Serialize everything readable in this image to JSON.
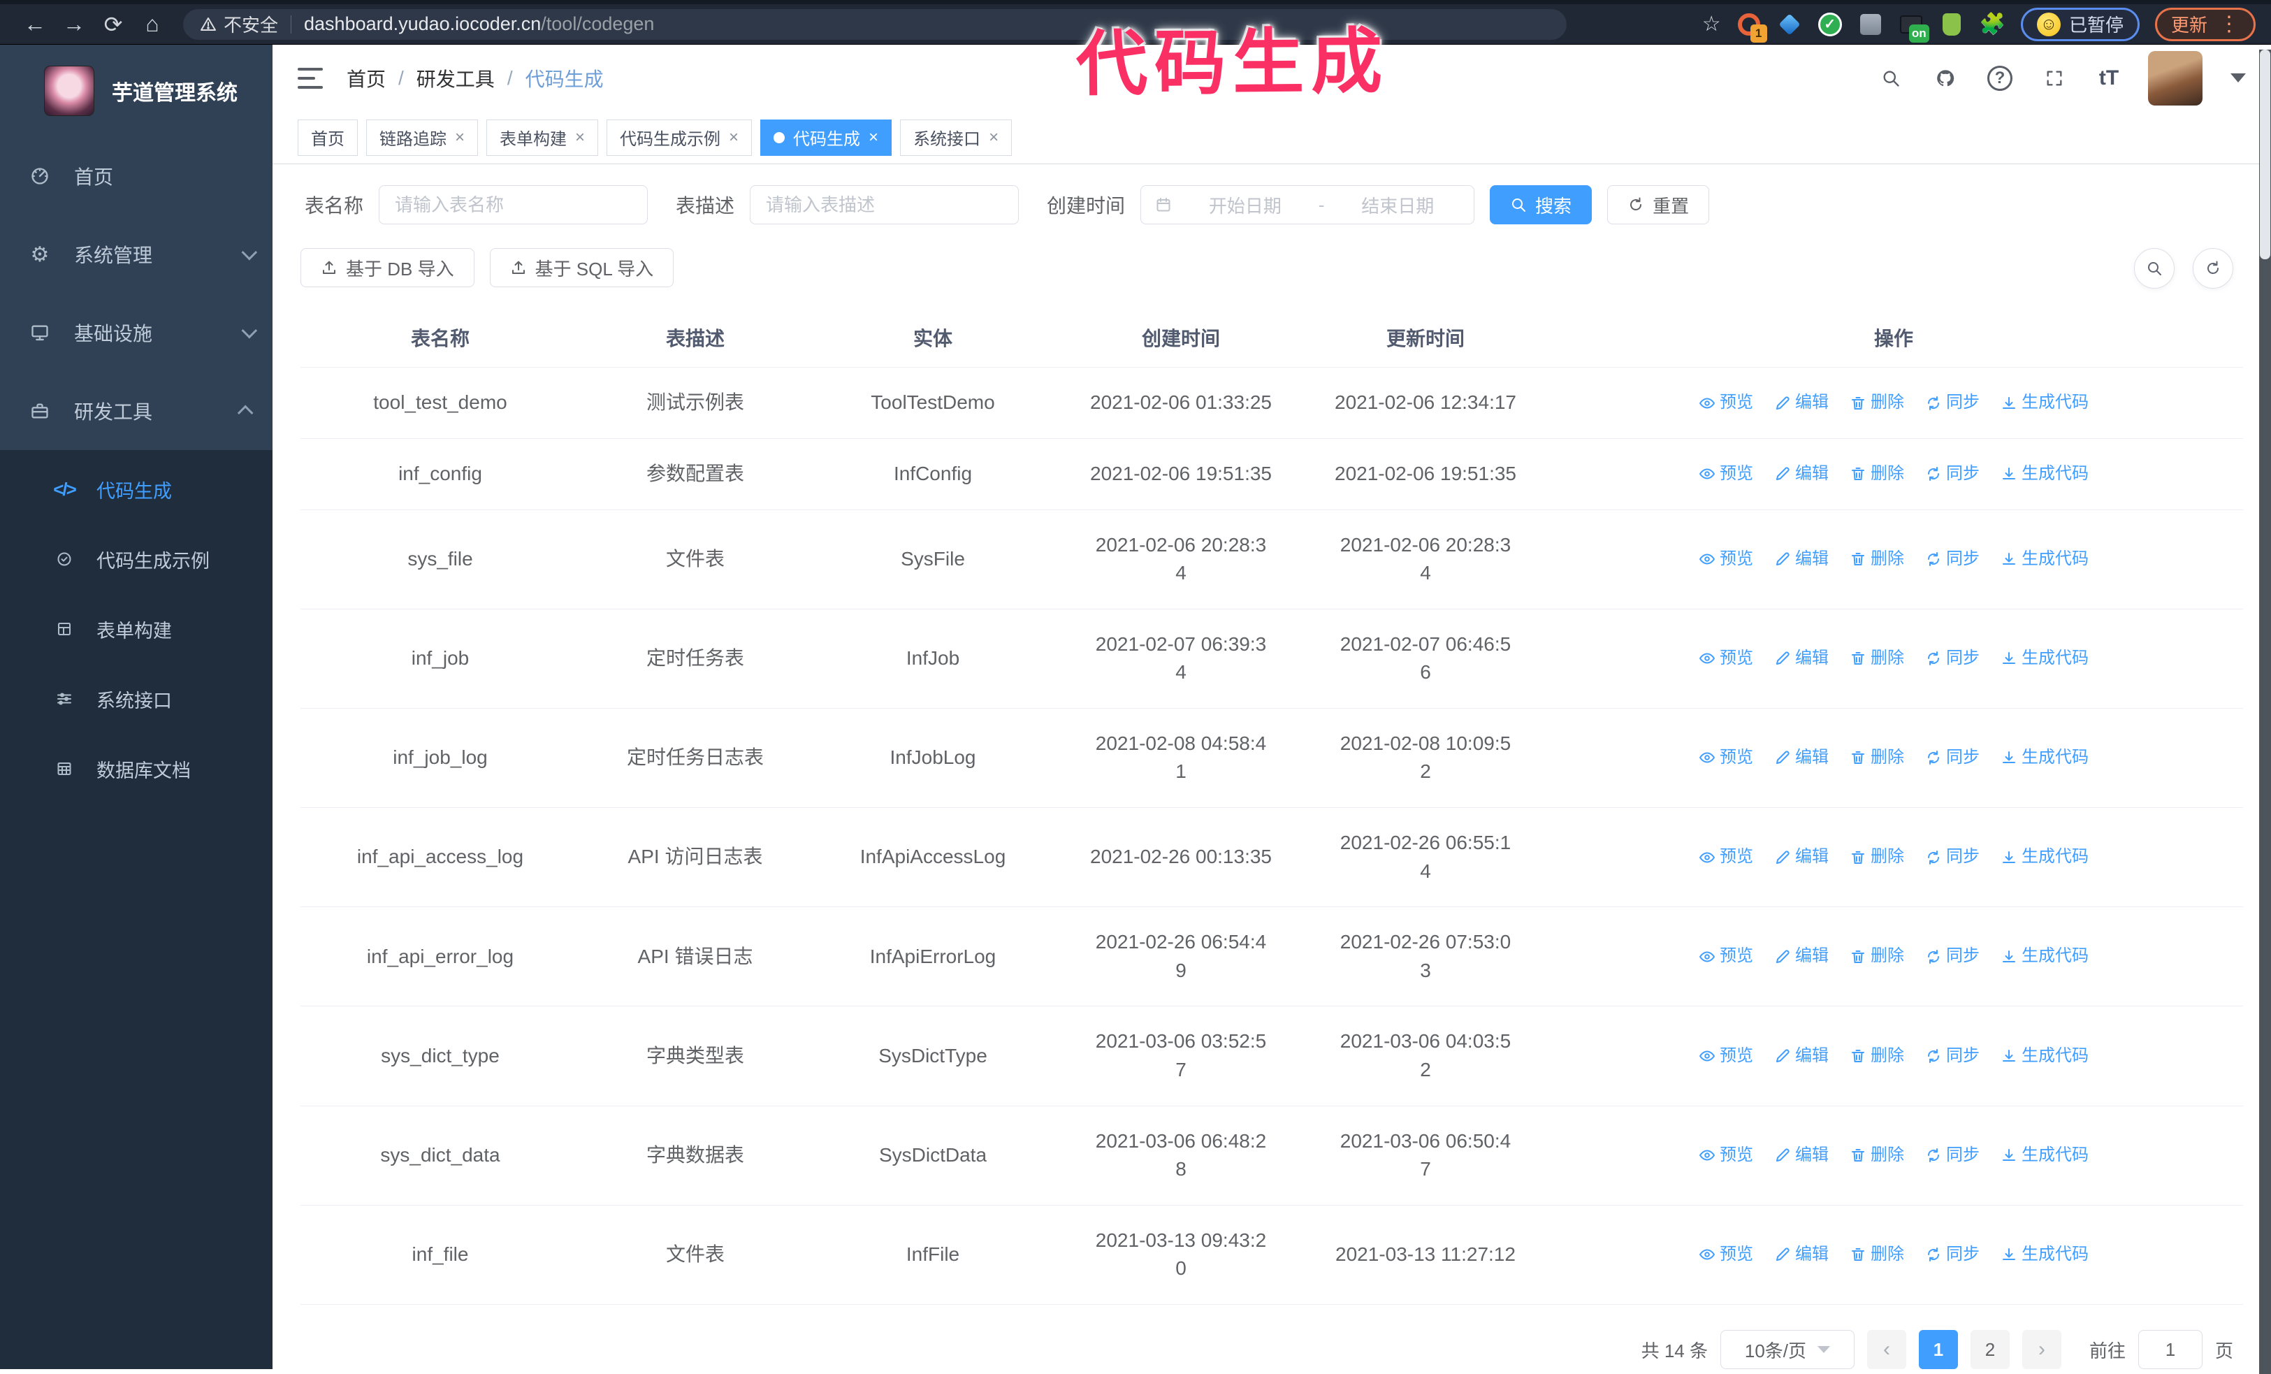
{
  "browser": {
    "back_icon": "←",
    "forward_icon": "→",
    "reload_icon": "⟳",
    "home_icon": "⌂",
    "security_label": "不安全",
    "url_host": "dashboard.yudao.iocoder.cn",
    "url_path": "/tool/codegen",
    "star_icon": "☆",
    "ext_badge_1": "1",
    "ext_badge_on": "on",
    "puzzle_icon": "🧩",
    "paused_emoji": "☺",
    "paused_label": "已暂停",
    "update_label": "更新",
    "menu_dots": "⋮"
  },
  "annotation": {
    "text": "代码生成",
    "color": "#fa2f63"
  },
  "sidebar": {
    "title": "芋道管理系统",
    "items": [
      {
        "label": "首页",
        "icon": "dashboard-icon"
      },
      {
        "label": "系统管理",
        "icon": "gear-icon",
        "gear_glyph": "⚙",
        "chevron": "down"
      },
      {
        "label": "基础设施",
        "icon": "monitor-icon",
        "chevron": "down"
      },
      {
        "label": "研发工具",
        "icon": "toolbox-icon",
        "chevron": "up"
      }
    ],
    "submenu": [
      {
        "label": "代码生成",
        "icon": "code-icon",
        "glyph": "</>",
        "active": true
      },
      {
        "label": "代码生成示例",
        "icon": "badge-check-icon"
      },
      {
        "label": "表单构建",
        "icon": "form-grid-icon"
      },
      {
        "label": "系统接口",
        "icon": "sliders-icon"
      },
      {
        "label": "数据库文档",
        "icon": "db-table-icon"
      }
    ]
  },
  "navbar": {
    "breadcrumb": {
      "home": "首页",
      "group": "研发工具",
      "current": "代码生成",
      "separator": "/"
    },
    "question_glyph": "?",
    "font_size_glyph": "tT"
  },
  "tabs": [
    {
      "label": "首页",
      "closable": false,
      "active": false
    },
    {
      "label": "链路追踪",
      "closable": true,
      "active": false
    },
    {
      "label": "表单构建",
      "closable": true,
      "active": false
    },
    {
      "label": "代码生成示例",
      "closable": true,
      "active": false
    },
    {
      "label": "代码生成",
      "closable": true,
      "active": true
    },
    {
      "label": "系统接口",
      "closable": true,
      "active": false
    }
  ],
  "close_glyph": "×",
  "search": {
    "name_label": "表名称",
    "name_placeholder": "请输入表名称",
    "desc_label": "表描述",
    "desc_placeholder": "请输入表描述",
    "date_label": "创建时间",
    "date_start_placeholder": "开始日期",
    "date_separator": "-",
    "date_end_placeholder": "结束日期",
    "search_button": "搜索",
    "reset_button": "重置"
  },
  "toolbar": {
    "import_db_button": "基于 DB 导入",
    "import_sql_button": "基于 SQL 导入"
  },
  "table": {
    "headers": {
      "name": "表名称",
      "desc": "表描述",
      "entity": "实体",
      "created": "创建时间",
      "updated": "更新时间",
      "ops": "操作"
    },
    "actions": [
      {
        "key": "preview",
        "label": "预览",
        "icon": "icon-eye"
      },
      {
        "key": "edit",
        "label": "编辑",
        "icon": "icon-edit"
      },
      {
        "key": "delete",
        "label": "删除",
        "icon": "icon-trash"
      },
      {
        "key": "sync",
        "label": "同步",
        "icon": "icon-sync"
      },
      {
        "key": "generate",
        "label": "生成代码",
        "icon": "icon-download"
      }
    ],
    "rows": [
      {
        "name": "tool_test_demo",
        "desc": "测试示例表",
        "entity": "ToolTestDemo",
        "created": "2021-02-06 01:33:25",
        "updated": "2021-02-06 12:34:17"
      },
      {
        "name": "inf_config",
        "desc": "参数配置表",
        "entity": "InfConfig",
        "created": "2021-02-06 19:51:35",
        "updated": "2021-02-06 19:51:35"
      },
      {
        "name": "sys_file",
        "desc": "文件表",
        "entity": "SysFile",
        "created": "2021-02-06 20:28:3\n4",
        "updated": "2021-02-06 20:28:3\n4"
      },
      {
        "name": "inf_job",
        "desc": "定时任务表",
        "entity": "InfJob",
        "created": "2021-02-07 06:39:3\n4",
        "updated": "2021-02-07 06:46:5\n6"
      },
      {
        "name": "inf_job_log",
        "desc": "定时任务日志表",
        "entity": "InfJobLog",
        "created": "2021-02-08 04:58:4\n1",
        "updated": "2021-02-08 10:09:5\n2"
      },
      {
        "name": "inf_api_access_log",
        "desc": "API 访问日志表",
        "entity": "InfApiAccessLog",
        "created": "2021-02-26 00:13:35",
        "updated": "2021-02-26 06:55:1\n4"
      },
      {
        "name": "inf_api_error_log",
        "desc": "API 错误日志",
        "entity": "InfApiErrorLog",
        "created": "2021-02-26 06:54:4\n9",
        "updated": "2021-02-26 07:53:0\n3"
      },
      {
        "name": "sys_dict_type",
        "desc": "字典类型表",
        "entity": "SysDictType",
        "created": "2021-03-06 03:52:5\n7",
        "updated": "2021-03-06 04:03:5\n2"
      },
      {
        "name": "sys_dict_data",
        "desc": "字典数据表",
        "entity": "SysDictData",
        "created": "2021-03-06 06:48:2\n8",
        "updated": "2021-03-06 06:50:4\n7"
      },
      {
        "name": "inf_file",
        "desc": "文件表",
        "entity": "InfFile",
        "created": "2021-03-13 09:43:2\n0",
        "updated": "2021-03-13 11:27:12"
      }
    ]
  },
  "pagination": {
    "total": "共 14 条",
    "page_size": "10条/页",
    "prev_icon": "‹",
    "next_icon": "›",
    "pages": [
      "1",
      "2"
    ],
    "current_page": "1",
    "goto_label": "前往",
    "goto_value": "1",
    "goto_suffix": "页"
  },
  "colors": {
    "primary": "#409eff",
    "sidebar_bg": "#304156",
    "submenu_bg": "#1f2d3d",
    "annotation": "#fa2f63"
  }
}
